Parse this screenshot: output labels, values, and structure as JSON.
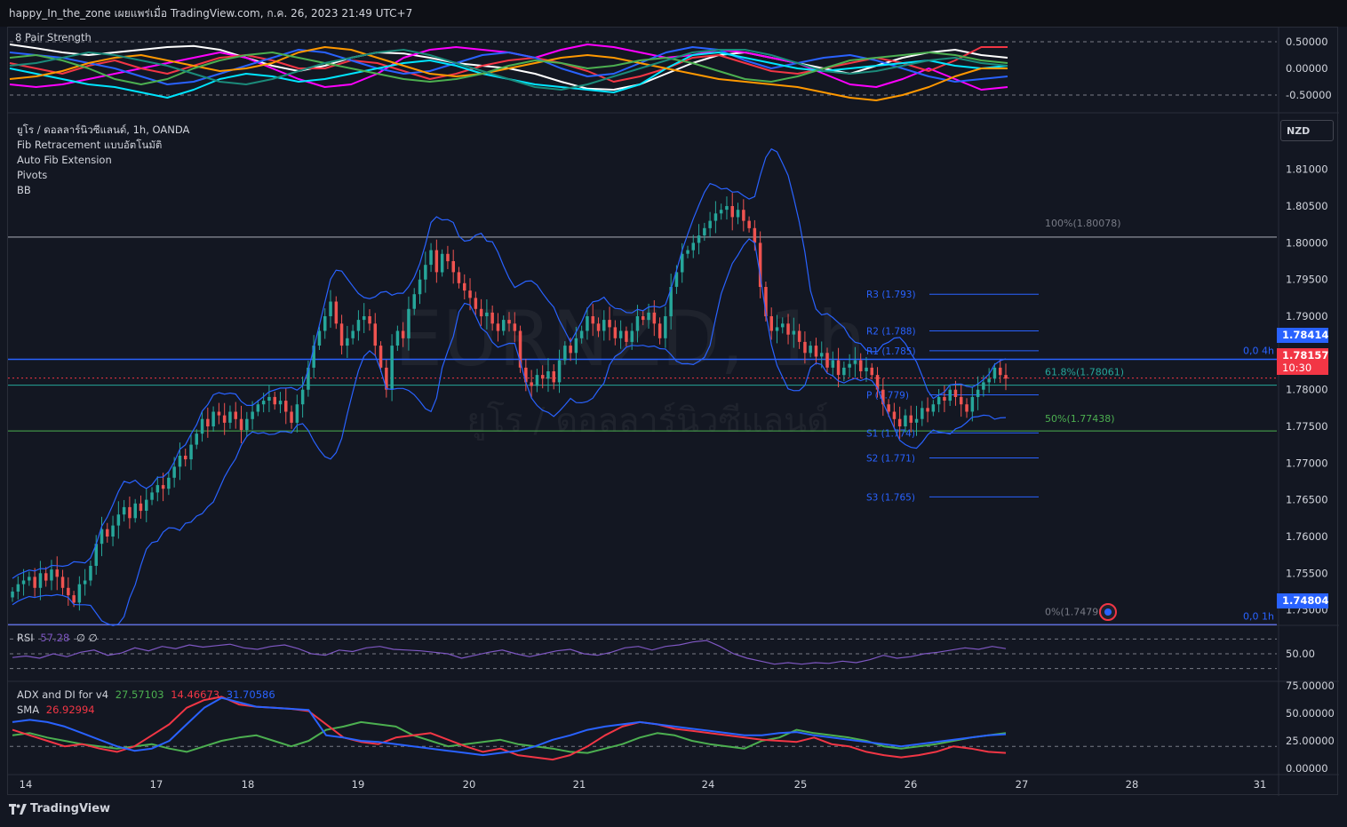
{
  "header": {
    "title": "happy_In_the_zone เผยแพร่เมื่อ TradingView.com, ก.ค. 26, 2023 21:49 UTC+7"
  },
  "footer": {
    "brand": "TradingView",
    "icon": "tradingview-logo-icon"
  },
  "currency_button": "NZD",
  "main_legend": {
    "symbol": "ยูโร / ดอลลาร์นิวซีแลนด์, 1h, OANDA",
    "indicators": [
      "Fib Retracement แบบอัตโนมัติ",
      "Auto Fib Extension",
      "Pivots",
      "BB"
    ]
  },
  "watermark": {
    "ticker": "EURNZD, 1h",
    "name": "ยูโร / ดอลลาร์นิวซีแลนด์"
  },
  "strength_legend": "8 Pair Strength",
  "rsi_legend": {
    "label": "RSI",
    "value": "57.28",
    "extra": "∅ ∅"
  },
  "adx_legend": {
    "label": "ADX and DI for v4",
    "v1": "27.57103",
    "v2": "14.46673",
    "v3": "31.70586",
    "sma_label": "SMA",
    "sma_value": "26.92994"
  },
  "price_tags": {
    "upper_fib": "1.78414",
    "current": "1.78157",
    "countdown": "10:30",
    "lower_fib": "1.74804"
  },
  "fib_labels": {
    "f100": "100%(1.80078)",
    "f618": "61.8%(1.78061)",
    "f50": "50%(1.77438)",
    "f0": "0%(1.74798)",
    "tag_4h": "0,0 4h",
    "tag_1h": "0,0 1h"
  },
  "pivot_labels": {
    "r3": "R3 (1.793)",
    "r2": "R2 (1.788)",
    "r1": "R1 (1.785)",
    "p": "P (1.779)",
    "s1": "S1 (1.774)",
    "s2": "S2 (1.771)",
    "s3": "S3 (1.765)"
  },
  "colors": {
    "up": "#26a69a",
    "down": "#ef5350",
    "bb": "#2962ff",
    "fib_blue": "#2962ff",
    "fib_green": "#4caf50",
    "rsi": "#7e57c2",
    "adx_green": "#4caf50",
    "adx_red": "#f23645",
    "adx_blue": "#2962ff"
  },
  "chart_data": [
    {
      "type": "line",
      "title": "8 Pair Strength",
      "yticks": [
        "0.50000",
        "0.00000",
        "-0.50000"
      ],
      "ylim": [
        -0.6,
        0.6
      ],
      "series": [
        {
          "color": "#ffffff",
          "values": [
            0.45,
            0.38,
            0.3,
            0.25,
            0.3,
            0.35,
            0.4,
            0.42,
            0.35,
            0.2,
            0.05,
            -0.05,
            0.05,
            0.2,
            0.3,
            0.28,
            0.2,
            0.1,
            0.05,
            0.0,
            -0.1,
            -0.25,
            -0.38,
            -0.4,
            -0.3,
            -0.1,
            0.1,
            0.25,
            0.3,
            0.2,
            0.1,
            0.0,
            -0.1,
            0.05,
            0.2,
            0.3,
            0.35,
            0.25,
            0.2
          ]
        },
        {
          "color": "#ff00ff",
          "values": [
            -0.3,
            -0.35,
            -0.3,
            -0.2,
            -0.1,
            0.0,
            0.1,
            0.2,
            0.3,
            0.2,
            0.0,
            -0.2,
            -0.35,
            -0.3,
            -0.1,
            0.2,
            0.35,
            0.4,
            0.35,
            0.3,
            0.2,
            0.35,
            0.45,
            0.4,
            0.3,
            0.2,
            0.25,
            0.35,
            0.3,
            0.2,
            0.1,
            -0.1,
            -0.3,
            -0.35,
            -0.2,
            0.0,
            -0.2,
            -0.4,
            -0.35
          ]
        },
        {
          "color": "#f23645",
          "values": [
            0.1,
            0.0,
            -0.1,
            0.05,
            0.15,
            0.0,
            -0.1,
            0.05,
            0.2,
            0.25,
            0.15,
            0.0,
            0.0,
            0.15,
            0.1,
            -0.05,
            -0.2,
            -0.1,
            0.05,
            0.15,
            0.2,
            0.1,
            -0.05,
            -0.25,
            -0.15,
            0.0,
            0.2,
            0.25,
            0.1,
            -0.05,
            -0.1,
            0.0,
            0.1,
            0.2,
            0.1,
            -0.05,
            0.15,
            0.4,
            0.4
          ]
        },
        {
          "color": "#2962ff",
          "values": [
            0.3,
            0.25,
            0.2,
            0.1,
            0.0,
            -0.15,
            -0.3,
            -0.25,
            -0.1,
            0.05,
            0.2,
            0.35,
            0.3,
            0.15,
            0.0,
            -0.1,
            -0.05,
            0.1,
            0.25,
            0.3,
            0.2,
            0.0,
            -0.15,
            -0.1,
            0.1,
            0.3,
            0.4,
            0.35,
            0.15,
            0.0,
            0.1,
            0.2,
            0.25,
            0.15,
            0.0,
            -0.15,
            -0.25,
            -0.2,
            -0.15
          ]
        },
        {
          "color": "#00e5ff",
          "values": [
            0.0,
            -0.1,
            -0.2,
            -0.3,
            -0.35,
            -0.45,
            -0.55,
            -0.4,
            -0.2,
            -0.1,
            -0.15,
            -0.25,
            -0.2,
            -0.1,
            0.0,
            0.1,
            0.15,
            0.05,
            -0.1,
            -0.2,
            -0.3,
            -0.35,
            -0.4,
            -0.45,
            -0.3,
            0.0,
            0.25,
            0.3,
            0.2,
            0.1,
            0.0,
            -0.05,
            0.0,
            0.05,
            0.1,
            0.15,
            0.05,
            0.0,
            0.05
          ]
        },
        {
          "color": "#ff9800",
          "values": [
            -0.2,
            -0.15,
            -0.05,
            0.1,
            0.2,
            0.25,
            0.15,
            0.05,
            -0.05,
            0.0,
            0.1,
            0.3,
            0.4,
            0.35,
            0.2,
            0.05,
            -0.1,
            -0.15,
            -0.1,
            0.0,
            0.1,
            0.2,
            0.25,
            0.2,
            0.1,
            0.0,
            -0.1,
            -0.2,
            -0.25,
            -0.3,
            -0.35,
            -0.45,
            -0.55,
            -0.6,
            -0.5,
            -0.35,
            -0.15,
            0.0,
            0.0
          ]
        },
        {
          "color": "#4caf50",
          "values": [
            0.2,
            0.25,
            0.15,
            0.0,
            -0.2,
            -0.3,
            -0.2,
            0.0,
            0.15,
            0.25,
            0.3,
            0.2,
            0.1,
            0.0,
            -0.1,
            -0.2,
            -0.25,
            -0.2,
            -0.1,
            0.05,
            0.15,
            0.1,
            0.0,
            0.05,
            0.15,
            0.2,
            0.1,
            -0.05,
            -0.2,
            -0.25,
            -0.15,
            0.0,
            0.15,
            0.2,
            0.25,
            0.3,
            0.25,
            0.15,
            0.1
          ]
        },
        {
          "color": "#1b8a7a",
          "values": [
            0.05,
            0.1,
            0.2,
            0.3,
            0.25,
            0.15,
            0.05,
            -0.1,
            -0.25,
            -0.3,
            -0.2,
            -0.05,
            0.1,
            0.2,
            0.3,
            0.35,
            0.25,
            0.1,
            -0.05,
            -0.2,
            -0.35,
            -0.4,
            -0.3,
            -0.15,
            0.0,
            0.15,
            0.3,
            0.35,
            0.35,
            0.25,
            0.1,
            -0.05,
            -0.1,
            -0.05,
            0.05,
            0.15,
            0.2,
            0.1,
            0.05
          ]
        }
      ]
    },
    {
      "type": "candlestick",
      "title": "ยูโร / ดอลลาร์นิวซีแลนด์, 1h, OANDA",
      "ylim": [
        1.7485,
        1.8165
      ],
      "yticks": [
        "1.81000",
        "1.80500",
        "1.80000",
        "1.79500",
        "1.79000",
        "1.78500",
        "1.78000",
        "1.77500",
        "1.77000",
        "1.76500",
        "1.76000",
        "1.75500",
        "1.75000"
      ],
      "xticks": [
        "14",
        "17",
        "18",
        "19",
        "20",
        "21",
        "24",
        "25",
        "26",
        "27",
        "28",
        "31"
      ],
      "closes": [
        1.7525,
        1.7535,
        1.754,
        1.7545,
        1.753,
        1.755,
        1.754,
        1.7555,
        1.7545,
        1.753,
        1.752,
        1.751,
        1.7535,
        1.754,
        1.756,
        1.759,
        1.761,
        1.76,
        1.7615,
        1.763,
        1.764,
        1.7625,
        1.7645,
        1.7635,
        1.765,
        1.766,
        1.767,
        1.7665,
        1.768,
        1.7695,
        1.771,
        1.7705,
        1.7725,
        1.774,
        1.776,
        1.775,
        1.777,
        1.7765,
        1.7755,
        1.777,
        1.776,
        1.7745,
        1.776,
        1.777,
        1.778,
        1.7785,
        1.779,
        1.778,
        1.7785,
        1.777,
        1.7755,
        1.778,
        1.78,
        1.783,
        1.786,
        1.788,
        1.79,
        1.792,
        1.789,
        1.786,
        1.787,
        1.788,
        1.7895,
        1.79,
        1.789,
        1.786,
        1.783,
        1.78,
        1.786,
        1.788,
        1.787,
        1.791,
        1.793,
        1.795,
        1.797,
        1.799,
        1.796,
        1.7985,
        1.7975,
        1.796,
        1.7945,
        1.7935,
        1.7925,
        1.791,
        1.79,
        1.7905,
        1.789,
        1.788,
        1.7895,
        1.789,
        1.788,
        1.783,
        1.781,
        1.7805,
        1.782,
        1.7815,
        1.7825,
        1.781,
        1.784,
        1.786,
        1.785,
        1.787,
        1.788,
        1.79,
        1.789,
        1.788,
        1.7895,
        1.7885,
        1.787,
        1.788,
        1.7865,
        1.788,
        1.79,
        1.7895,
        1.7905,
        1.789,
        1.787,
        1.79,
        1.794,
        1.796,
        1.7985,
        1.799,
        1.8,
        1.801,
        1.802,
        1.803,
        1.804,
        1.8045,
        1.805,
        1.8035,
        1.8045,
        1.803,
        1.802,
        1.8,
        1.794,
        1.79,
        1.788,
        1.7885,
        1.789,
        1.7875,
        1.788,
        1.7865,
        1.785,
        1.786,
        1.7845,
        1.785,
        1.783,
        1.784,
        1.782,
        1.783,
        1.7835,
        1.784,
        1.7825,
        1.783,
        1.782,
        1.78,
        1.778,
        1.777,
        1.776,
        1.775,
        1.7765,
        1.7755,
        1.776,
        1.7775,
        1.777,
        1.778,
        1.779,
        1.7785,
        1.78,
        1.779,
        1.778,
        1.777,
        1.779,
        1.78,
        1.781,
        1.7815,
        1.783,
        1.782,
        1.7815
      ]
    },
    {
      "type": "line",
      "title": "RSI",
      "ylim": [
        20,
        80
      ],
      "yticks": [
        "50.00"
      ],
      "values": [
        45,
        47,
        44,
        50,
        46,
        52,
        55,
        48,
        51,
        58,
        54,
        60,
        57,
        62,
        59,
        61,
        63,
        58,
        56,
        60,
        62,
        57,
        50,
        48,
        55,
        53,
        58,
        60,
        56,
        55,
        54,
        52,
        50,
        44,
        48,
        52,
        55,
        50,
        46,
        50,
        54,
        56,
        50,
        48,
        52,
        58,
        60,
        55,
        60,
        62,
        66,
        68,
        60,
        50,
        44,
        40,
        36,
        38,
        36,
        38,
        37,
        40,
        38,
        42,
        48,
        44,
        46,
        50,
        52,
        55,
        58,
        56,
        60,
        57
      ]
    },
    {
      "type": "line",
      "title": "ADX and DI for v4",
      "ylim": [
        0,
        75
      ],
      "yticks": [
        "75.00000",
        "50.00000",
        "25.00000",
        "0.00000"
      ],
      "series": [
        {
          "name": "",
          "color": "#4caf50",
          "values": [
            30,
            32,
            28,
            25,
            22,
            20,
            18,
            20,
            22,
            18,
            15,
            20,
            25,
            28,
            30,
            25,
            20,
            25,
            35,
            38,
            42,
            40,
            38,
            30,
            25,
            20,
            22,
            24,
            26,
            22,
            20,
            18,
            15,
            14,
            18,
            22,
            28,
            32,
            30,
            25,
            22,
            20,
            18,
            25,
            28,
            35,
            32,
            30,
            28,
            25,
            20,
            18,
            20,
            22,
            25,
            28,
            30,
            32
          ]
        },
        {
          "name": "",
          "color": "#f23645",
          "values": [
            35,
            30,
            25,
            20,
            22,
            18,
            15,
            20,
            30,
            40,
            55,
            62,
            65,
            58,
            56,
            55,
            54,
            52,
            40,
            28,
            24,
            22,
            28,
            30,
            32,
            26,
            20,
            15,
            18,
            12,
            10,
            8,
            12,
            20,
            30,
            38,
            42,
            40,
            36,
            34,
            32,
            30,
            28,
            26,
            25,
            24,
            28,
            22,
            20,
            15,
            12,
            10,
            12,
            15,
            20,
            18,
            15,
            14
          ]
        },
        {
          "name": "",
          "color": "#2962ff",
          "values": [
            42,
            44,
            42,
            38,
            32,
            26,
            20,
            16,
            18,
            25,
            40,
            55,
            64,
            60,
            56,
            55,
            54,
            53,
            30,
            28,
            25,
            24,
            22,
            20,
            18,
            16,
            14,
            12,
            14,
            16,
            20,
            26,
            30,
            35,
            38,
            40,
            42,
            40,
            38,
            36,
            34,
            32,
            30,
            30,
            32,
            33,
            30,
            28,
            26,
            24,
            22,
            20,
            22,
            24,
            26,
            28,
            30,
            31
          ]
        }
      ]
    }
  ]
}
